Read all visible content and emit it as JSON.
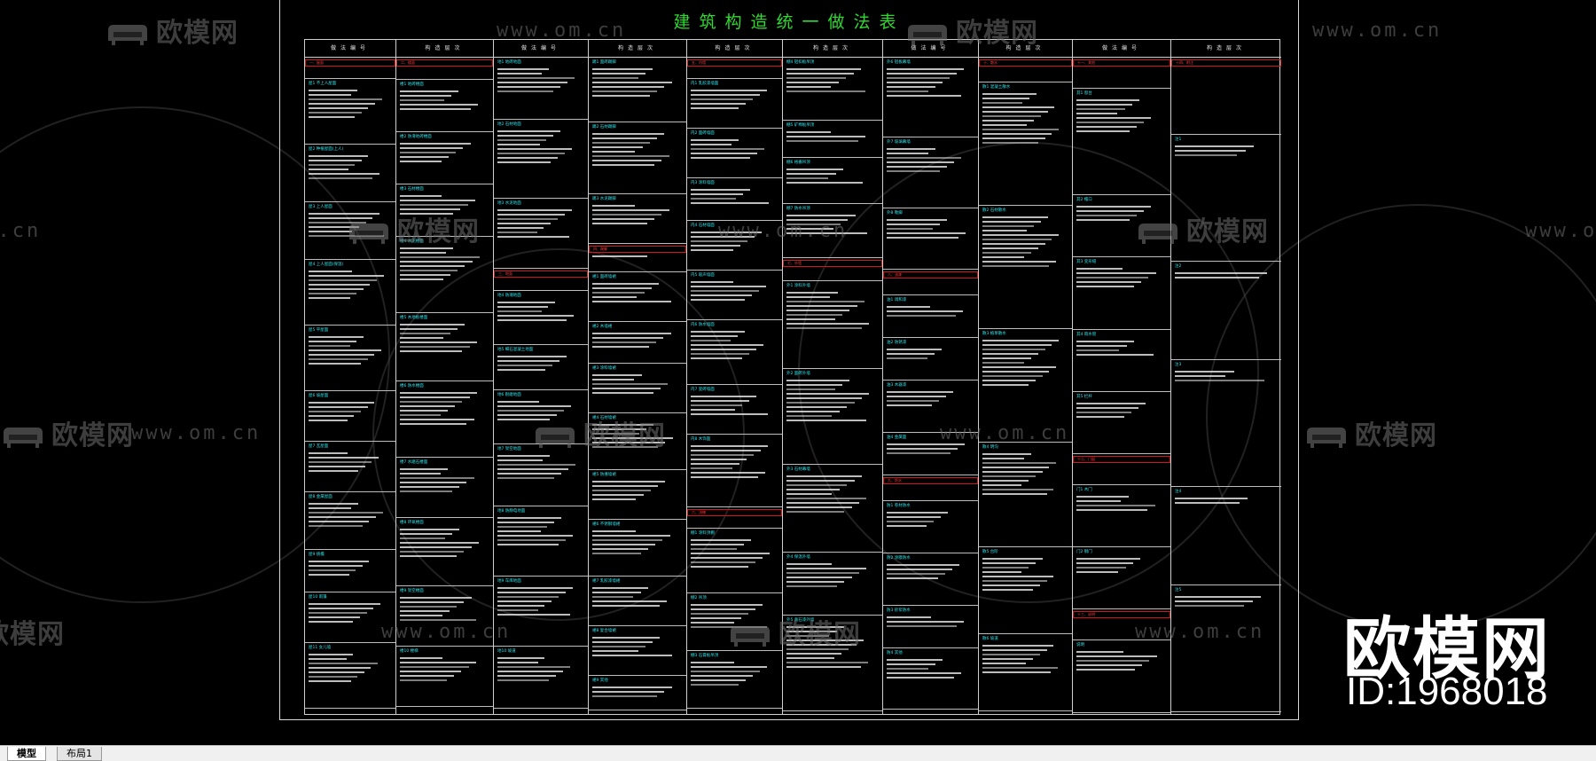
{
  "drawing": {
    "title": "建筑构造统一做法表",
    "watermark_brand": "欧模网",
    "watermark_url": "www.om.cn",
    "brand_text": "欧模网",
    "id_text": "ID:1968018"
  },
  "tabs": [
    {
      "label": "模型",
      "active": true
    },
    {
      "label": "布局1",
      "active": false
    }
  ],
  "colors": {
    "background": "#000000",
    "title": "#2fd92f",
    "heading": "#2fe3ea",
    "highlight": "#ff3a3a",
    "line": "#cfcfcf"
  },
  "columns": [
    {
      "header": "做法编号",
      "sections": [
        {
          "title": "一、屋面",
          "red": true,
          "lines": 0
        },
        {
          "title": "屋1 不上人屋面",
          "lines": 7
        },
        {
          "title": "屋2 种植屋面(上人)",
          "lines": 6
        },
        {
          "title": "屋3 上人屋面",
          "lines": 6
        },
        {
          "title": "屋4 上人屋面(保温)",
          "lines": 7
        },
        {
          "title": "屋5 平屋面",
          "lines": 7
        },
        {
          "title": "屋6 坡屋面",
          "lines": 5
        },
        {
          "title": "屋7 瓦屋面",
          "lines": 5
        },
        {
          "title": "屋8 金属屋面",
          "lines": 6
        },
        {
          "title": "屋9 挑檐",
          "lines": 4
        },
        {
          "title": "屋10 雨篷",
          "lines": 5
        },
        {
          "title": "屋11 女儿墙",
          "lines": 7
        }
      ]
    },
    {
      "header": "构造层次",
      "sections": [
        {
          "title": "二、楼面",
          "red": true,
          "lines": 0
        },
        {
          "title": "楼1 地砖楼面",
          "lines": 5
        },
        {
          "title": "楼2 防滑地砖楼面",
          "lines": 5
        },
        {
          "title": "楼3 石材楼面",
          "lines": 5
        },
        {
          "title": "楼4 水泥楼面",
          "lines": 8
        },
        {
          "title": "楼5 木地板楼面",
          "lines": 7
        },
        {
          "title": "楼6 防水楼面",
          "lines": 8
        },
        {
          "title": "楼7 水磨石楼面",
          "lines": 6
        },
        {
          "title": "楼8 环氧楼面",
          "lines": 7
        },
        {
          "title": "楼9 架空楼面",
          "lines": 6
        },
        {
          "title": "楼10 楼梯",
          "lines": 6
        }
      ]
    },
    {
      "header": "做法编号",
      "sections": [
        {
          "title": "地1 地砖地面",
          "lines": 6
        },
        {
          "title": "地2 石材地面",
          "lines": 8
        },
        {
          "title": "地3 水泥地面",
          "lines": 7
        },
        {
          "title": "三、地面",
          "red": true,
          "lines": 0
        },
        {
          "title": "地4 防潮地面",
          "lines": 5
        },
        {
          "title": "地5 细石混凝土地面",
          "lines": 4
        },
        {
          "title": "地6 耐磨地面",
          "lines": 5
        },
        {
          "title": "地7 架空地面",
          "lines": 6
        },
        {
          "title": "地8 防静电地面",
          "lines": 7
        },
        {
          "title": "地9 车库地面",
          "lines": 7
        },
        {
          "title": "地10 坡道",
          "lines": 6
        }
      ]
    },
    {
      "header": "构造层次",
      "sections": [
        {
          "title": "踢1 面砖踢脚",
          "lines": 7
        },
        {
          "title": "踢2 石材踢脚",
          "lines": 8
        },
        {
          "title": "踢3 水泥踢脚",
          "lines": 5
        },
        {
          "title": "四、踢脚",
          "red": true,
          "lines": 1
        },
        {
          "title": "裙1 面砖墙裙",
          "lines": 5
        },
        {
          "title": "裙2 木墙裙",
          "lines": 4
        },
        {
          "title": "裙3 涂料墙裙",
          "lines": 5
        },
        {
          "title": "裙4 石材墙裙",
          "lines": 6
        },
        {
          "title": "裙5 防撞墙裙",
          "lines": 5
        },
        {
          "title": "裙6 不锈钢墙裙",
          "lines": 6
        },
        {
          "title": "裙7 乳胶漆墙裙",
          "lines": 5
        },
        {
          "title": "裙8 复合墙裙",
          "lines": 5
        },
        {
          "title": "裙9 其他",
          "lines": 3
        }
      ]
    },
    {
      "header": "构造层次",
      "sections": [
        {
          "title": "五、内墙",
          "red": true,
          "lines": 0
        },
        {
          "title": "内1 乳胶漆墙面",
          "lines": 5
        },
        {
          "title": "内2 面砖墙面",
          "lines": 5
        },
        {
          "title": "内3 涂料墙面",
          "lines": 4
        },
        {
          "title": "内4 石材墙面",
          "lines": 5
        },
        {
          "title": "内5 吸声墙面",
          "lines": 5
        },
        {
          "title": "内6 防水墙面",
          "lines": 7
        },
        {
          "title": "内7 瓷砖墙面",
          "lines": 5
        },
        {
          "title": "内8 木饰面",
          "lines": 8
        },
        {
          "title": "六、顶棚",
          "red": true,
          "lines": 0
        },
        {
          "title": "棚1 涂料顶棚",
          "lines": 7
        },
        {
          "title": "棚2 吊顶",
          "lines": 6
        },
        {
          "title": "棚3 石膏板吊顶",
          "lines": 6
        }
      ]
    },
    {
      "header": "构造层次",
      "sections": [
        {
          "title": "棚4 铝扣板吊顶",
          "lines": 6
        },
        {
          "title": "棚5 矿棉板吊顶",
          "lines": 3
        },
        {
          "title": "棚6 格栅吊顶",
          "lines": 4
        },
        {
          "title": "棚7 防水吊顶",
          "lines": 5
        },
        {
          "title": "七、外墙",
          "red": true,
          "lines": 0
        },
        {
          "title": "外1 涂料外墙",
          "lines": 9
        },
        {
          "title": "外2 面砖外墙",
          "lines": 10
        },
        {
          "title": "外3 石材幕墙",
          "lines": 9
        },
        {
          "title": "外4 保温外墙",
          "lines": 6
        },
        {
          "title": "外5 真石漆外墙",
          "lines": 10
        }
      ]
    },
    {
      "header": "做法编号",
      "sections": [
        {
          "title": "外6 铝板幕墙",
          "lines": 7
        },
        {
          "title": "外7 玻璃幕墙",
          "lines": 6
        },
        {
          "title": "外8 勒脚",
          "lines": 5
        },
        {
          "title": "八、油漆",
          "red": true,
          "lines": 0
        },
        {
          "title": "油1 调和漆",
          "lines": 3
        },
        {
          "title": "油2 防锈漆",
          "lines": 3
        },
        {
          "title": "油3 木器漆",
          "lines": 4
        },
        {
          "title": "油4 金属面",
          "lines": 3
        },
        {
          "title": "九、防水",
          "red": true,
          "lines": 0
        },
        {
          "title": "防1 卷材防水",
          "lines": 4
        },
        {
          "title": "防2 涂膜防水",
          "lines": 4
        },
        {
          "title": "防3 砂浆防水",
          "lines": 3
        },
        {
          "title": "防4 其他",
          "lines": 5
        }
      ]
    },
    {
      "header": "构造层次",
      "sections": [
        {
          "title": "十、散水",
          "red": true,
          "lines": 0
        },
        {
          "title": "散1 混凝土散水",
          "lines": 12
        },
        {
          "title": "散2 石材散水",
          "lines": 12
        },
        {
          "title": "散3 植草散水",
          "lines": 11
        },
        {
          "title": "散4 明沟",
          "lines": 10
        },
        {
          "title": "散5 台阶",
          "lines": 8
        },
        {
          "title": "散6 坡道",
          "lines": 7
        }
      ]
    },
    {
      "header": "做法编号",
      "sections": [
        {
          "title": "十一、其他",
          "red": true,
          "lines": 0
        },
        {
          "title": "其1 窗台",
          "lines": 8
        },
        {
          "title": "其2 檐口",
          "lines": 4
        },
        {
          "title": "其3 变形缝",
          "lines": 5
        },
        {
          "title": "其4 雨水管",
          "lines": 4
        },
        {
          "title": "其5 栏杆",
          "lines": 4
        },
        {
          "title": "十二、门窗",
          "red": true,
          "lines": 0
        },
        {
          "title": "门1 木门",
          "lines": 4
        },
        {
          "title": "门2 钢门",
          "lines": 4
        },
        {
          "title": "十三、说明",
          "red": true,
          "lines": 0
        },
        {
          "title": "说明",
          "lines": 5
        }
      ]
    },
    {
      "header": "构造层次",
      "sections": [
        {
          "title": "十四、附注",
          "red": true,
          "lines": 0
        },
        {
          "title": "注1",
          "lines": 3
        },
        {
          "title": "注2",
          "lines": 2
        },
        {
          "title": "注3",
          "lines": 3
        },
        {
          "title": "注4",
          "lines": 2
        },
        {
          "title": "注5",
          "lines": 3
        }
      ]
    }
  ]
}
